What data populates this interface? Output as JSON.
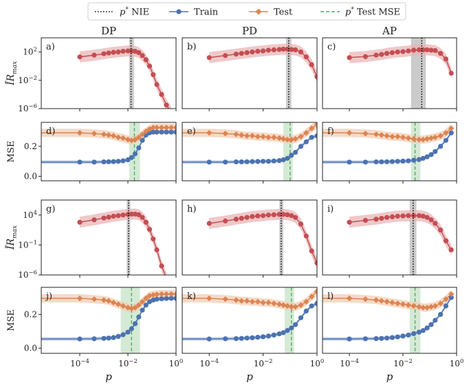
{
  "legend": {
    "entries": [
      {
        "id": "nie",
        "label": "p* NIE",
        "sym": "p",
        "sup": "*",
        "rest": " NIE"
      },
      {
        "id": "train",
        "label": "Train"
      },
      {
        "id": "test",
        "label": "Test"
      },
      {
        "id": "mse",
        "label": "p* Test MSE",
        "sym": "p",
        "sup": "*",
        "rest": " Test MSE"
      }
    ]
  },
  "colors": {
    "train": "#4c72b0",
    "test": "#dd8452",
    "red": "#c44e52",
    "redband": "#e8b0b2",
    "testband": "#f3cdb3",
    "trainband": "#aec3e3",
    "greenband": "#cfe8cf",
    "green": "#55a868",
    "greyband": "#b9b9b9",
    "nie": "#000000"
  },
  "columns": [
    "DP",
    "PD",
    "AP"
  ],
  "ylabels": {
    "ir": "ĪR",
    "ir_sub": "max",
    "mse": "MSE"
  },
  "xlabel": "p",
  "chart_data": {
    "type": "scatter",
    "rows": [
      {
        "kind": "ir",
        "ylim_log": [
          -6,
          4
        ],
        "yticks": [
          {
            "v": 2,
            "label": "10",
            "sup": "2"
          },
          {
            "v": -2,
            "label": "10",
            "sup": "−2"
          },
          {
            "v": -6,
            "label": "10",
            "sup": "−6"
          }
        ]
      },
      {
        "kind": "mse",
        "ylim": [
          -0.03,
          0.36
        ],
        "yticks": [
          {
            "v": 0.2,
            "label": "0.2"
          },
          {
            "v": 0.0,
            "label": "0.0"
          }
        ]
      },
      {
        "kind": "ir",
        "ylim_log": [
          -6,
          6.5
        ],
        "yticks": [
          {
            "v": 4,
            "label": "10",
            "sup": "4"
          },
          {
            "v": -1,
            "label": "10",
            "sup": "−1"
          },
          {
            "v": -6,
            "label": "10",
            "sup": "−6"
          }
        ]
      },
      {
        "kind": "mse",
        "ylim": [
          -0.03,
          0.36
        ],
        "yticks": [
          {
            "v": 0.2,
            "label": "0.2"
          },
          {
            "v": 0.0,
            "label": "0.0"
          }
        ]
      }
    ],
    "xaxis": [
      {
        "xlim_log": [
          -5.6,
          0
        ],
        "ticks": [
          {
            "v": -4,
            "label": "10",
            "sup": "−4"
          },
          {
            "v": -2,
            "label": "10",
            "sup": "−2"
          },
          {
            "v": 0,
            "label": "10",
            "sup": "0"
          }
        ]
      },
      {
        "xlim_log": [
          -5,
          0
        ],
        "ticks": [
          {
            "v": -4,
            "label": "10",
            "sup": "−4"
          },
          {
            "v": -2,
            "label": "10",
            "sup": "−2"
          },
          {
            "v": 0,
            "label": "10",
            "sup": "0"
          }
        ]
      },
      {
        "xlim_log": [
          -5,
          0
        ],
        "ticks": [
          {
            "v": -4,
            "label": "10",
            "sup": "−4"
          },
          {
            "v": -2,
            "label": "10",
            "sup": "−2"
          },
          {
            "v": 0,
            "label": "10",
            "sup": "0"
          }
        ]
      }
    ],
    "panels": [
      {
        "letter": "a)",
        "row": 0,
        "col": 0,
        "ir": {
          "x": [
            -4,
            -3.4,
            -3,
            -2.8,
            -2.6,
            -2.4,
            -2.2,
            -2.0,
            -1.85,
            -1.7,
            -1.55,
            -1.4,
            -1.25,
            -1.1,
            -0.95,
            -0.8,
            -0.6,
            -0.4,
            -0.2
          ],
          "y": [
            1.3,
            1.55,
            1.75,
            1.85,
            1.95,
            2.0,
            2.1,
            2.15,
            2.15,
            2.1,
            1.9,
            1.5,
            0.9,
            0.0,
            -1.2,
            -2.6,
            -4.0,
            -5.5,
            -6.5
          ]
        },
        "band": [
          -1.95,
          -1.75
        ],
        "vline": -1.87
      },
      {
        "letter": "d)",
        "row": 1,
        "col": 0,
        "train": {
          "x": [
            -5.6,
            -4,
            -3.4,
            -3,
            -2.8,
            -2.6,
            -2.4,
            -2.2,
            -2.0,
            -1.85,
            -1.7,
            -1.55,
            -1.4,
            -1.25,
            -1.1,
            -0.95,
            -0.8,
            -0.6,
            -0.4,
            -0.2,
            0
          ],
          "y": [
            0.095,
            0.095,
            0.095,
            0.096,
            0.097,
            0.098,
            0.1,
            0.103,
            0.11,
            0.125,
            0.15,
            0.19,
            0.24,
            0.275,
            0.29,
            0.295,
            0.295,
            0.295,
            0.295,
            0.295,
            0.295
          ]
        },
        "test": {
          "x": [
            -5.6,
            -4,
            -3.4,
            -3,
            -2.8,
            -2.6,
            -2.4,
            -2.2,
            -2.0,
            -1.85,
            -1.7,
            -1.55,
            -1.4,
            -1.25,
            -1.1,
            -0.95,
            -0.8,
            -0.6,
            -0.4,
            -0.2,
            0
          ],
          "y": [
            0.29,
            0.29,
            0.285,
            0.28,
            0.275,
            0.27,
            0.26,
            0.255,
            0.245,
            0.24,
            0.245,
            0.26,
            0.28,
            0.3,
            0.315,
            0.325,
            0.325,
            0.325,
            0.325,
            0.325,
            0.325
          ]
        },
        "band": [
          -1.95,
          -1.5
        ],
        "vline": -1.73
      },
      {
        "letter": "b)",
        "row": 0,
        "col": 1,
        "ir": {
          "x": [
            -4,
            -3.4,
            -3,
            -2.8,
            -2.6,
            -2.4,
            -2.2,
            -2.0,
            -1.8,
            -1.6,
            -1.4,
            -1.25,
            -1.1,
            -0.95,
            -0.8,
            -0.6,
            -0.4,
            -0.2,
            0
          ],
          "y": [
            1.2,
            1.5,
            1.7,
            1.8,
            1.9,
            2.0,
            2.1,
            2.15,
            2.25,
            2.3,
            2.35,
            2.4,
            2.4,
            2.35,
            2.3,
            2.0,
            1.3,
            0.2,
            -1.5
          ]
        },
        "band": [
          -1.15,
          -0.95
        ],
        "vline": -1.05
      },
      {
        "letter": "e)",
        "row": 1,
        "col": 1,
        "train": {
          "x": [
            -5,
            -4,
            -3.4,
            -3,
            -2.8,
            -2.6,
            -2.4,
            -2.2,
            -2.0,
            -1.8,
            -1.6,
            -1.4,
            -1.25,
            -1.1,
            -0.95,
            -0.8,
            -0.6,
            -0.4,
            -0.2,
            0
          ],
          "y": [
            0.095,
            0.095,
            0.095,
            0.096,
            0.096,
            0.097,
            0.098,
            0.099,
            0.1,
            0.1,
            0.102,
            0.105,
            0.11,
            0.12,
            0.14,
            0.16,
            0.2,
            0.23,
            0.26,
            0.27
          ]
        },
        "test": {
          "x": [
            -5,
            -4,
            -3.4,
            -3,
            -2.8,
            -2.6,
            -2.4,
            -2.2,
            -2.0,
            -1.8,
            -1.6,
            -1.4,
            -1.25,
            -1.1,
            -0.95,
            -0.8,
            -0.6,
            -0.4,
            -0.2,
            0
          ],
          "y": [
            0.29,
            0.29,
            0.285,
            0.28,
            0.275,
            0.27,
            0.27,
            0.265,
            0.265,
            0.26,
            0.26,
            0.255,
            0.25,
            0.245,
            0.245,
            0.25,
            0.265,
            0.29,
            0.32,
            0.345
          ]
        },
        "band": [
          -1.25,
          -0.9
        ],
        "vline": -1.0
      },
      {
        "letter": "c)",
        "row": 0,
        "col": 2,
        "ir": {
          "x": [
            -4,
            -3.4,
            -3,
            -2.8,
            -2.6,
            -2.4,
            -2.2,
            -2.0,
            -1.8,
            -1.6,
            -1.4,
            -1.25,
            -1.1,
            -0.95,
            -0.8,
            -0.6,
            -0.4,
            -0.2
          ],
          "y": [
            1.2,
            1.35,
            1.55,
            1.65,
            1.8,
            1.9,
            2.0,
            2.05,
            2.15,
            2.25,
            2.3,
            2.3,
            2.3,
            2.25,
            2.2,
            1.8,
            1.0,
            -1.0
          ]
        },
        "band": [
          -1.7,
          -1.15
        ],
        "vline": -1.3
      },
      {
        "letter": "f)",
        "row": 1,
        "col": 2,
        "train": {
          "x": [
            -5,
            -4,
            -3.4,
            -3,
            -2.8,
            -2.6,
            -2.4,
            -2.2,
            -2.0,
            -1.8,
            -1.6,
            -1.4,
            -1.25,
            -1.1,
            -0.95,
            -0.8,
            -0.6,
            -0.4,
            -0.2
          ],
          "y": [
            0.095,
            0.095,
            0.095,
            0.096,
            0.096,
            0.097,
            0.098,
            0.1,
            0.101,
            0.103,
            0.107,
            0.112,
            0.12,
            0.13,
            0.145,
            0.165,
            0.2,
            0.24,
            0.29
          ]
        },
        "test": {
          "x": [
            -5,
            -4,
            -3.4,
            -3,
            -2.8,
            -2.6,
            -2.4,
            -2.2,
            -2.0,
            -1.8,
            -1.6,
            -1.4,
            -1.25,
            -1.1,
            -0.95,
            -0.8,
            -0.6,
            -0.4,
            -0.2
          ],
          "y": [
            0.29,
            0.29,
            0.285,
            0.28,
            0.275,
            0.27,
            0.265,
            0.265,
            0.26,
            0.255,
            0.25,
            0.245,
            0.245,
            0.25,
            0.255,
            0.26,
            0.27,
            0.29,
            0.32
          ]
        },
        "band": [
          -1.7,
          -1.35
        ],
        "vline": -1.55
      },
      {
        "letter": "g)",
        "row": 2,
        "col": 0,
        "ir": {
          "x": [
            -4,
            -3.4,
            -3,
            -2.8,
            -2.6,
            -2.4,
            -2.2,
            -2.0,
            -1.85,
            -1.7,
            -1.55,
            -1.4,
            -1.25,
            -1.1,
            -0.95,
            -0.8,
            -0.6,
            -0.4
          ],
          "y": [
            2.8,
            3.2,
            3.5,
            3.65,
            3.8,
            3.9,
            4.0,
            4.1,
            4.15,
            4.15,
            4.05,
            3.6,
            2.8,
            1.6,
            0.0,
            -1.8,
            -4.5,
            -6.5
          ]
        },
        "band": [
          -2.05,
          -1.9
        ],
        "vline": -1.97
      },
      {
        "letter": "j)",
        "row": 3,
        "col": 0,
        "train": {
          "x": [
            -5.6,
            -4,
            -3.4,
            -3,
            -2.8,
            -2.6,
            -2.4,
            -2.2,
            -2.0,
            -1.85,
            -1.7,
            -1.55,
            -1.4,
            -1.25,
            -1.1,
            -0.95,
            -0.8,
            -0.6,
            -0.4,
            -0.2,
            0
          ],
          "y": [
            0.055,
            0.055,
            0.056,
            0.058,
            0.06,
            0.063,
            0.07,
            0.08,
            0.095,
            0.115,
            0.145,
            0.185,
            0.225,
            0.255,
            0.275,
            0.285,
            0.29,
            0.292,
            0.294,
            0.295,
            0.295
          ]
        },
        "test": {
          "x": [
            -5.6,
            -4,
            -3.4,
            -3,
            -2.8,
            -2.6,
            -2.4,
            -2.2,
            -2.0,
            -1.85,
            -1.7,
            -1.55,
            -1.4,
            -1.25,
            -1.1,
            -0.95,
            -0.8,
            -0.6,
            -0.4,
            -0.2,
            0
          ],
          "y": [
            0.295,
            0.295,
            0.29,
            0.285,
            0.28,
            0.27,
            0.26,
            0.25,
            0.24,
            0.235,
            0.24,
            0.255,
            0.275,
            0.295,
            0.31,
            0.315,
            0.318,
            0.32,
            0.32,
            0.32,
            0.32
          ]
        },
        "band": [
          -2.3,
          -1.5
        ],
        "vline": -1.85
      },
      {
        "letter": "h)",
        "row": 2,
        "col": 1,
        "ir": {
          "x": [
            -4,
            -3.4,
            -3,
            -2.8,
            -2.6,
            -2.4,
            -2.2,
            -2.0,
            -1.8,
            -1.6,
            -1.4,
            -1.25,
            -1.1,
            -0.95,
            -0.8,
            -0.6,
            -0.4,
            -0.2,
            0
          ],
          "y": [
            2.6,
            3.0,
            3.3,
            3.45,
            3.6,
            3.75,
            3.85,
            3.9,
            4.0,
            4.05,
            4.1,
            4.1,
            4.05,
            3.9,
            3.6,
            2.5,
            0.5,
            -2.0,
            -4.0
          ]
        },
        "band": [
          -1.4,
          -1.25
        ],
        "vline": -1.33
      },
      {
        "letter": "k)",
        "row": 3,
        "col": 1,
        "train": {
          "x": [
            -5,
            -4,
            -3.4,
            -3,
            -2.8,
            -2.6,
            -2.4,
            -2.2,
            -2.0,
            -1.8,
            -1.6,
            -1.4,
            -1.25,
            -1.1,
            -0.95,
            -0.8,
            -0.6,
            -0.4,
            -0.2,
            0
          ],
          "y": [
            0.055,
            0.055,
            0.056,
            0.057,
            0.058,
            0.06,
            0.062,
            0.065,
            0.068,
            0.072,
            0.078,
            0.085,
            0.092,
            0.105,
            0.12,
            0.14,
            0.18,
            0.22,
            0.25,
            0.265
          ]
        },
        "test": {
          "x": [
            -5,
            -4,
            -3.4,
            -3,
            -2.8,
            -2.6,
            -2.4,
            -2.2,
            -2.0,
            -1.8,
            -1.6,
            -1.4,
            -1.25,
            -1.1,
            -0.95,
            -0.8,
            -0.6,
            -0.4,
            -0.2,
            0
          ],
          "y": [
            0.295,
            0.295,
            0.29,
            0.285,
            0.28,
            0.28,
            0.275,
            0.275,
            0.27,
            0.27,
            0.265,
            0.26,
            0.255,
            0.25,
            0.245,
            0.245,
            0.255,
            0.275,
            0.305,
            0.335
          ]
        },
        "band": [
          -1.2,
          -0.85
        ],
        "vline": -0.95
      },
      {
        "letter": "i)",
        "row": 2,
        "col": 2,
        "ir": {
          "x": [
            -4,
            -3.4,
            -3,
            -2.8,
            -2.6,
            -2.4,
            -2.2,
            -2.0,
            -1.8,
            -1.6,
            -1.4,
            -1.25,
            -1.1,
            -0.95,
            -0.8,
            -0.6,
            -0.4,
            -0.2
          ],
          "y": [
            2.8,
            3.1,
            3.3,
            3.45,
            3.6,
            3.7,
            3.8,
            3.85,
            3.9,
            3.9,
            3.9,
            3.8,
            3.6,
            3.2,
            2.6,
            1.5,
            -0.3,
            -1.8
          ]
        },
        "band": [
          -1.75,
          -1.5
        ],
        "vline": -1.62
      },
      {
        "letter": "l)",
        "row": 3,
        "col": 2,
        "train": {
          "x": [
            -5,
            -4,
            -3.4,
            -3,
            -2.8,
            -2.6,
            -2.4,
            -2.2,
            -2.0,
            -1.8,
            -1.6,
            -1.4,
            -1.25,
            -1.1,
            -0.95,
            -0.8,
            -0.6,
            -0.4,
            -0.2
          ],
          "y": [
            0.055,
            0.055,
            0.056,
            0.057,
            0.058,
            0.06,
            0.063,
            0.067,
            0.072,
            0.078,
            0.086,
            0.095,
            0.105,
            0.12,
            0.14,
            0.165,
            0.2,
            0.25,
            0.3
          ]
        },
        "test": {
          "x": [
            -5,
            -4,
            -3.4,
            -3,
            -2.8,
            -2.6,
            -2.4,
            -2.2,
            -2.0,
            -1.8,
            -1.6,
            -1.4,
            -1.25,
            -1.1,
            -0.95,
            -0.8,
            -0.6,
            -0.4,
            -0.2
          ],
          "y": [
            0.295,
            0.295,
            0.29,
            0.285,
            0.28,
            0.275,
            0.27,
            0.265,
            0.26,
            0.255,
            0.25,
            0.245,
            0.24,
            0.24,
            0.245,
            0.25,
            0.265,
            0.29,
            0.32
          ]
        },
        "band": [
          -1.75,
          -1.35
        ],
        "vline": -1.55
      }
    ]
  }
}
